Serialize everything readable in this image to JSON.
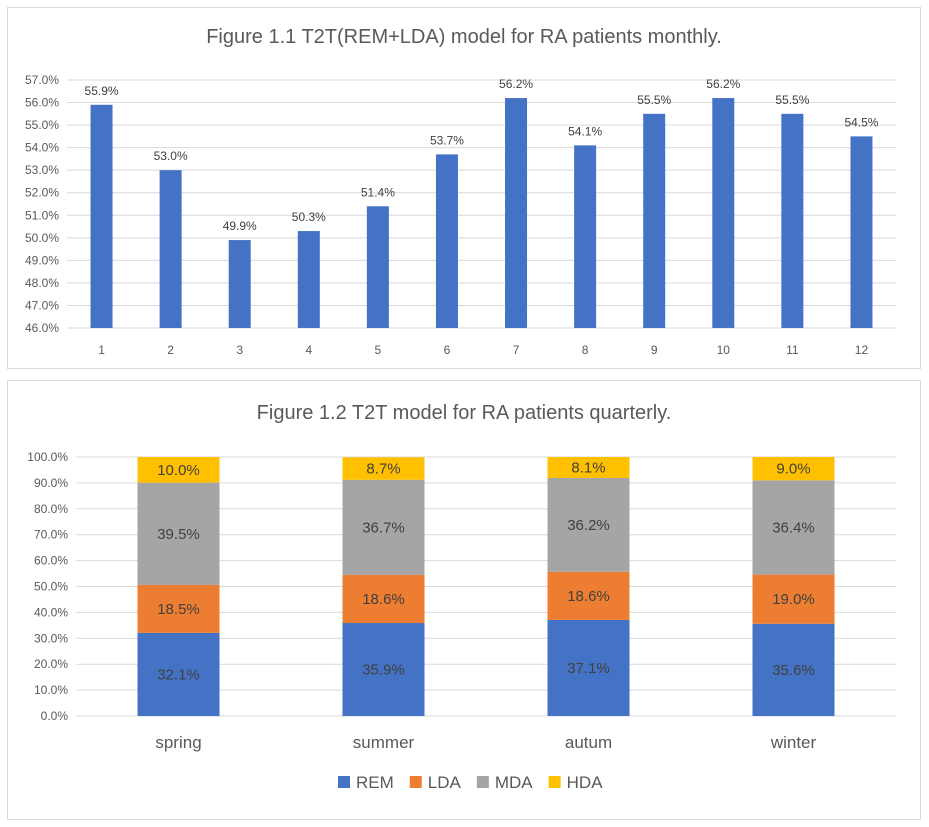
{
  "chart_data": [
    {
      "type": "bar",
      "title": "Figure 1.1 T2T(REM+LDA) model for RA patients monthly.",
      "categories": [
        "1",
        "2",
        "3",
        "4",
        "5",
        "6",
        "7",
        "8",
        "9",
        "10",
        "11",
        "12"
      ],
      "values": [
        55.9,
        53.0,
        49.9,
        50.3,
        51.4,
        53.7,
        56.2,
        54.1,
        55.5,
        56.2,
        55.5,
        54.5
      ],
      "data_labels": [
        "55.9%",
        "53.0%",
        "49.9%",
        "50.3%",
        "51.4%",
        "53.7%",
        "56.2%",
        "54.1%",
        "55.5%",
        "56.2%",
        "55.5%",
        "54.5%"
      ],
      "xlabel": "",
      "ylabel": "",
      "ylim": [
        46,
        57
      ],
      "yticks": [
        "46.0%",
        "47.0%",
        "48.0%",
        "49.0%",
        "50.0%",
        "51.0%",
        "52.0%",
        "53.0%",
        "54.0%",
        "55.0%",
        "56.0%",
        "57.0%"
      ],
      "grid": true,
      "color": "#4472c4"
    },
    {
      "type": "bar",
      "stacked": true,
      "title": "Figure 1.2 T2T model for RA patients quarterly.",
      "categories": [
        "spring",
        "summer",
        "autum",
        "winter"
      ],
      "series": [
        {
          "name": "REM",
          "values": [
            32.1,
            35.9,
            37.1,
            35.6
          ],
          "labels": [
            "32.1%",
            "35.9%",
            "37.1%",
            "35.6%"
          ],
          "color": "#4472c4"
        },
        {
          "name": "LDA",
          "values": [
            18.5,
            18.6,
            18.6,
            19.0
          ],
          "labels": [
            "18.5%",
            "18.6%",
            "18.6%",
            "19.0%"
          ],
          "color": "#ed7d31"
        },
        {
          "name": "MDA",
          "values": [
            39.5,
            36.7,
            36.2,
            36.4
          ],
          "labels": [
            "39.5%",
            "36.7%",
            "36.2%",
            "36.4%"
          ],
          "color": "#a5a5a5"
        },
        {
          "name": "HDA",
          "values": [
            10.0,
            8.7,
            8.1,
            9.0
          ],
          "labels": [
            "10.0%",
            "8.7%",
            "8.1%",
            "9.0%"
          ],
          "color": "#ffc000"
        }
      ],
      "xlabel": "",
      "ylabel": "",
      "ylim": [
        0,
        100
      ],
      "yticks": [
        "0.0%",
        "10.0%",
        "20.0%",
        "30.0%",
        "40.0%",
        "50.0%",
        "60.0%",
        "70.0%",
        "80.0%",
        "90.0%",
        "100.0%"
      ],
      "grid": true,
      "legend": "bottom"
    }
  ]
}
